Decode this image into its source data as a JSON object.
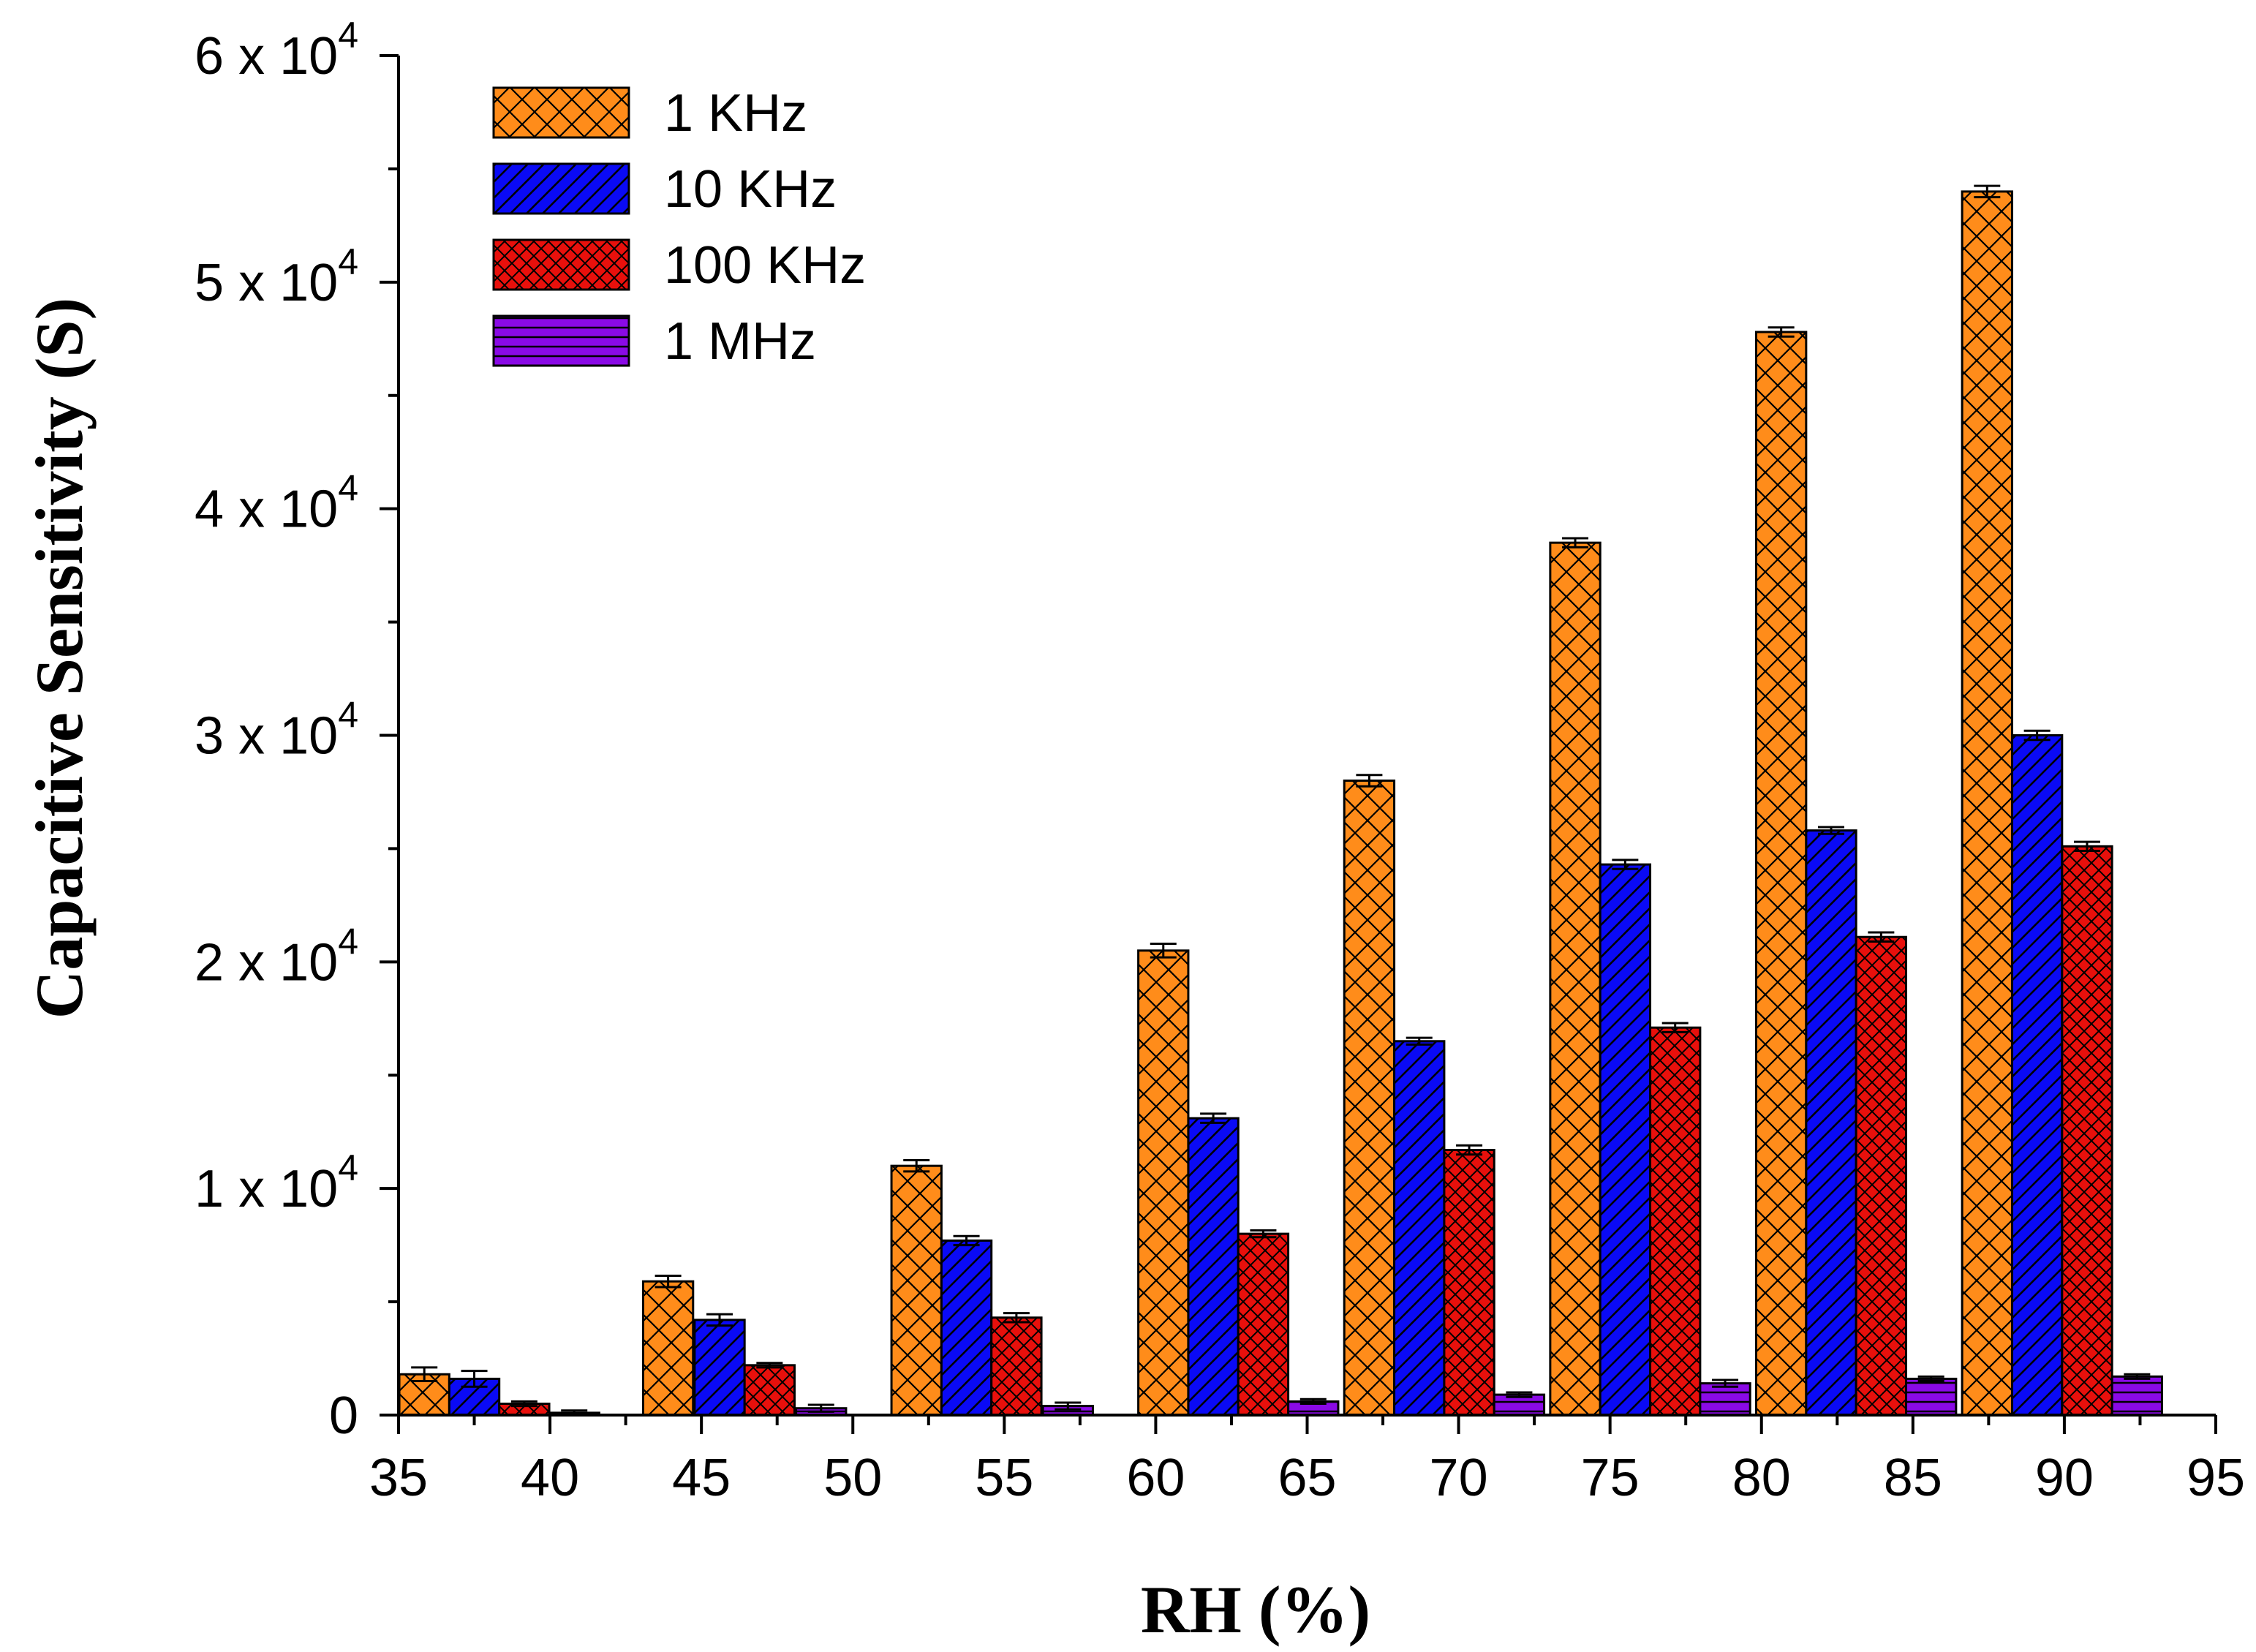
{
  "chart_data": {
    "type": "bar",
    "xlabel": "RH (%)",
    "ylabel": "Capacitive Sensitivity (S)",
    "xlim": [
      35,
      95
    ],
    "ylim": [
      0,
      60000
    ],
    "x_ticks": [
      35,
      40,
      45,
      50,
      55,
      60,
      65,
      70,
      75,
      80,
      85,
      90,
      95
    ],
    "y_ticks": [
      {
        "value": 0,
        "label": "0"
      },
      {
        "value": 10000,
        "mantissa": "1 x 10",
        "exp": "4"
      },
      {
        "value": 20000,
        "mantissa": "2 x 10",
        "exp": "4"
      },
      {
        "value": 30000,
        "mantissa": "3 x 10",
        "exp": "4"
      },
      {
        "value": 40000,
        "mantissa": "4 x 10",
        "exp": "4"
      },
      {
        "value": 50000,
        "mantissa": "5 x 10",
        "exp": "4"
      },
      {
        "value": 60000,
        "mantissa": "6 x 10",
        "exp": "4"
      }
    ],
    "bar_width": 1.65,
    "legend_position": "top-left",
    "series": [
      {
        "name": "1 KHz",
        "color": "#ff8c1a",
        "pattern": "crosshatch",
        "x": [
          35.85,
          43.9,
          52.1,
          60.25,
          67.05,
          73.85,
          80.65,
          87.45
        ],
        "values": [
          1800,
          5900,
          11000,
          20500,
          28000,
          38500,
          47800,
          54000
        ],
        "errors": [
          300,
          250,
          250,
          300,
          250,
          200,
          200,
          250
        ]
      },
      {
        "name": "10 KHz",
        "color": "#0a0af5",
        "pattern": "diagonal",
        "x": [
          37.5,
          45.6,
          53.75,
          61.9,
          68.7,
          75.5,
          82.3,
          89.1
        ],
        "values": [
          1600,
          4200,
          7700,
          13100,
          16500,
          24300,
          25800,
          30000
        ],
        "errors": [
          350,
          250,
          200,
          200,
          150,
          200,
          150,
          200
        ]
      },
      {
        "name": "100 KHz",
        "color": "#e8100c",
        "pattern": "dense-crosshatch",
        "x": [
          39.15,
          47.25,
          55.4,
          63.55,
          70.35,
          77.15,
          83.95,
          90.75
        ],
        "values": [
          500,
          2200,
          4300,
          8000,
          11700,
          17100,
          21100,
          25100
        ],
        "errors": [
          100,
          100,
          200,
          150,
          200,
          200,
          200,
          200
        ]
      },
      {
        "name": "1 MHz",
        "color": "#8a0ae6",
        "pattern": "horizontal",
        "x": [
          40.8,
          48.95,
          57.1,
          65.2,
          72.0,
          78.8,
          85.6,
          92.4
        ],
        "values": [
          100,
          300,
          400,
          600,
          900,
          1400,
          1600,
          1700
        ],
        "errors": [
          100,
          150,
          150,
          100,
          100,
          150,
          100,
          100
        ]
      }
    ]
  }
}
